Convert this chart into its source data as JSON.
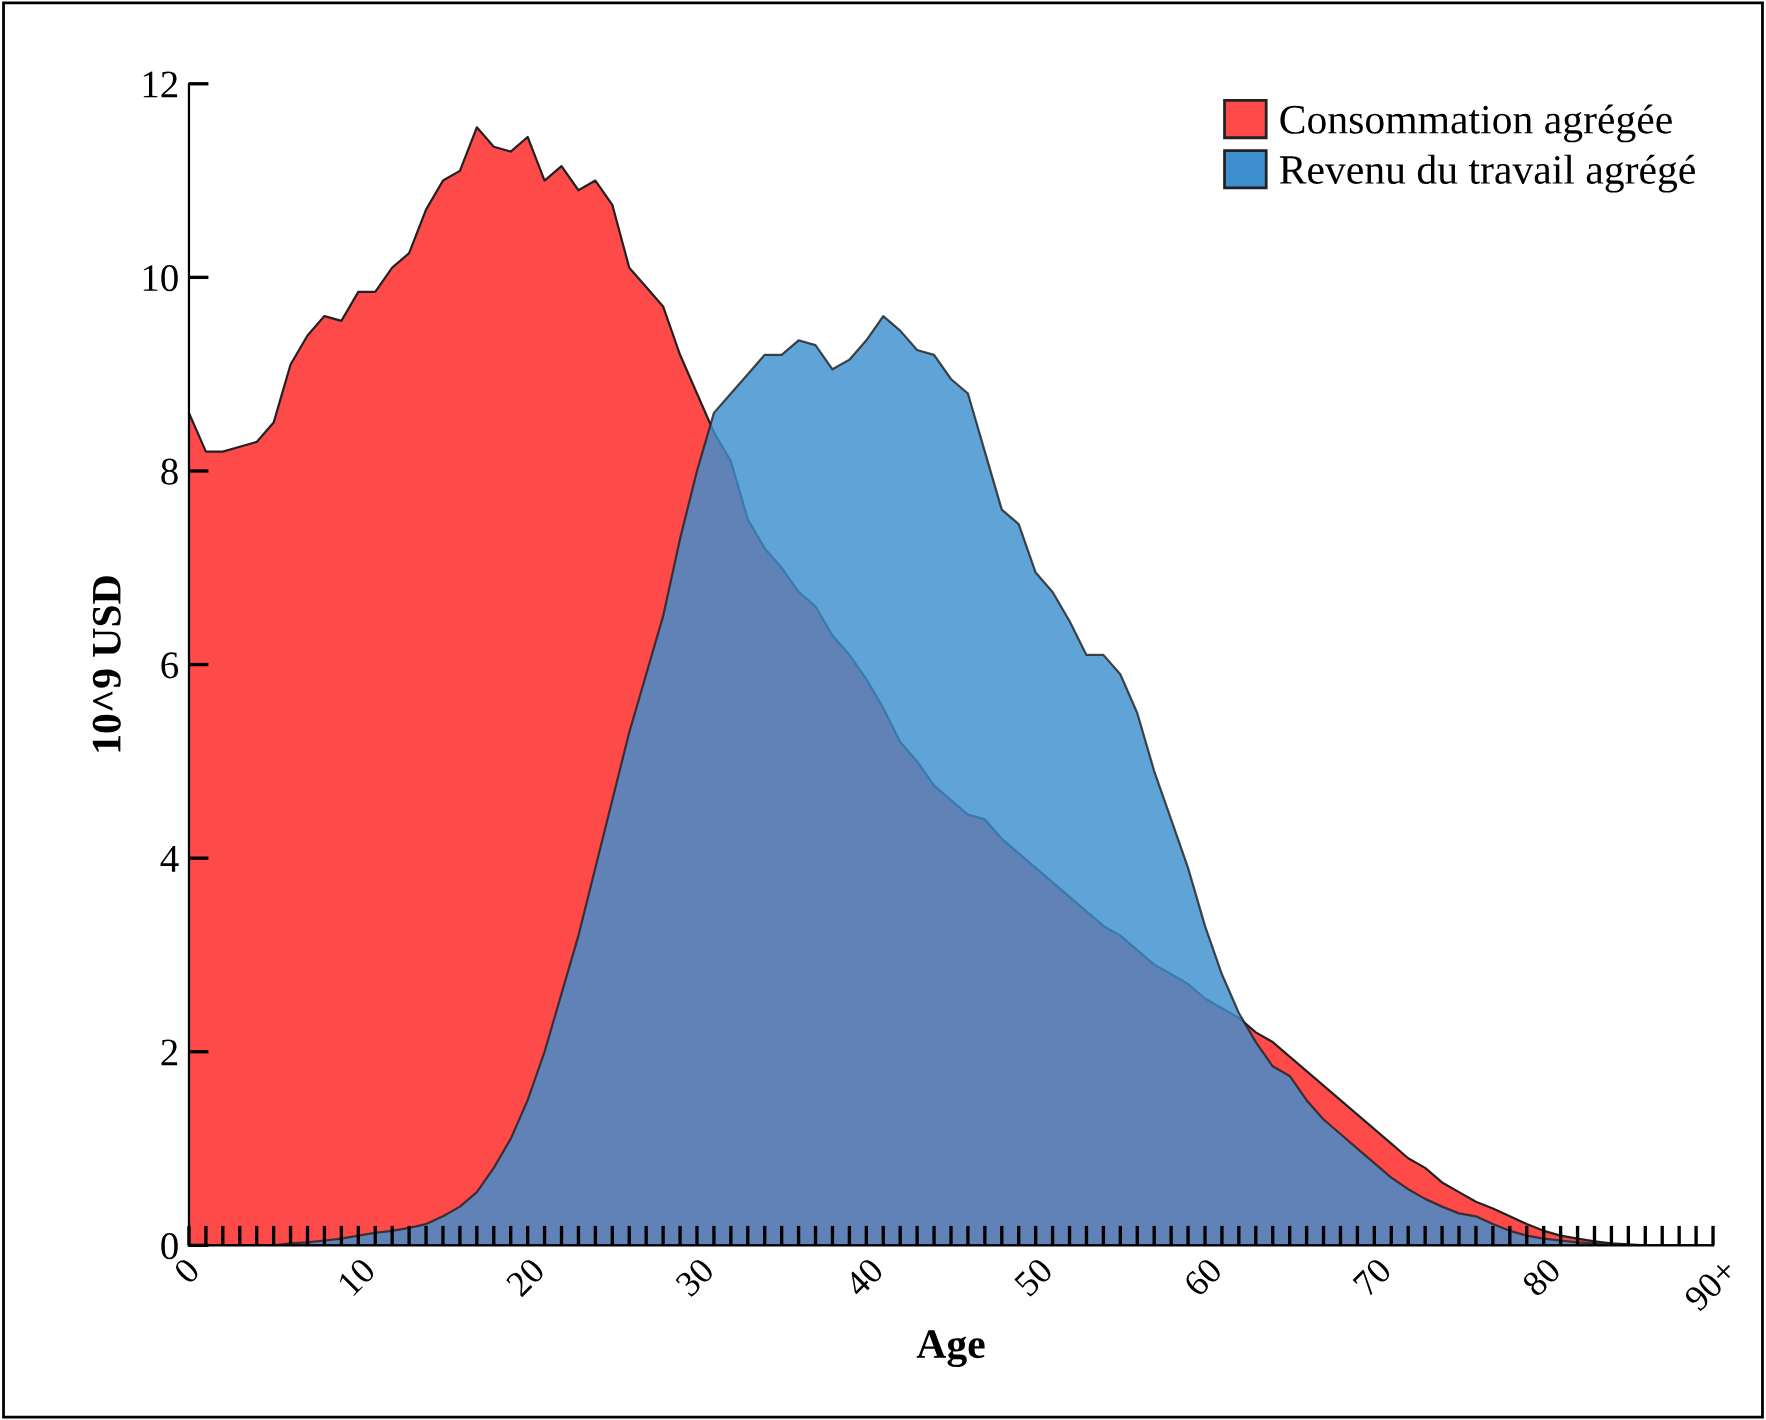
{
  "chart_data": {
    "type": "area",
    "xlabel": "Age",
    "ylabel": "10^9 USD",
    "legend": "top right",
    "grid": false,
    "x": [
      0,
      1,
      2,
      3,
      4,
      5,
      6,
      7,
      8,
      9,
      10,
      11,
      12,
      13,
      14,
      15,
      16,
      17,
      18,
      19,
      20,
      21,
      22,
      23,
      24,
      25,
      26,
      27,
      28,
      29,
      30,
      31,
      32,
      33,
      34,
      35,
      36,
      37,
      38,
      39,
      40,
      41,
      42,
      43,
      44,
      45,
      46,
      47,
      48,
      49,
      50,
      51,
      52,
      53,
      54,
      55,
      56,
      57,
      58,
      59,
      60,
      61,
      62,
      63,
      64,
      65,
      66,
      67,
      68,
      69,
      70,
      71,
      72,
      73,
      74,
      75,
      76,
      77,
      78,
      79,
      80,
      81,
      82,
      83,
      84,
      85,
      86,
      87,
      88,
      89,
      90
    ],
    "series": [
      {
        "name": "Consommation agrégée",
        "color": "#ff4a4a",
        "values": [
          8.6,
          8.2,
          8.2,
          8.25,
          8.3,
          8.5,
          9.1,
          9.4,
          9.6,
          9.55,
          9.85,
          9.85,
          10.1,
          10.25,
          10.7,
          11.0,
          11.1,
          11.55,
          11.35,
          11.3,
          11.45,
          11.0,
          11.15,
          10.9,
          11.0,
          10.75,
          10.1,
          9.9,
          9.7,
          9.2,
          8.8,
          8.4,
          8.1,
          7.5,
          7.2,
          7.0,
          6.75,
          6.6,
          6.3,
          6.1,
          5.85,
          5.55,
          5.2,
          5.0,
          4.75,
          4.6,
          4.45,
          4.4,
          4.2,
          4.05,
          3.9,
          3.75,
          3.6,
          3.45,
          3.3,
          3.2,
          3.05,
          2.9,
          2.8,
          2.7,
          2.55,
          2.45,
          2.35,
          2.2,
          2.1,
          1.95,
          1.8,
          1.65,
          1.5,
          1.35,
          1.2,
          1.05,
          0.9,
          0.8,
          0.65,
          0.55,
          0.45,
          0.38,
          0.3,
          0.22,
          0.15,
          0.1,
          0.07,
          0.04,
          0.02,
          0.01,
          0,
          0,
          0,
          0,
          0
        ]
      },
      {
        "name": "Revenu du travail agrégé",
        "color": "#3d8fce",
        "values": [
          0,
          0,
          0,
          0,
          0,
          0,
          0.02,
          0.03,
          0.05,
          0.07,
          0.1,
          0.13,
          0.15,
          0.18,
          0.22,
          0.3,
          0.4,
          0.55,
          0.8,
          1.1,
          1.5,
          2.0,
          2.6,
          3.2,
          3.9,
          4.6,
          5.3,
          5.9,
          6.5,
          7.3,
          8.0,
          8.6,
          8.8,
          9.0,
          9.2,
          9.2,
          9.35,
          9.3,
          9.05,
          9.15,
          9.35,
          9.6,
          9.45,
          9.25,
          9.2,
          8.95,
          8.8,
          8.2,
          7.6,
          7.45,
          6.95,
          6.75,
          6.45,
          6.1,
          6.1,
          5.9,
          5.5,
          4.9,
          4.4,
          3.9,
          3.3,
          2.8,
          2.4,
          2.1,
          1.85,
          1.75,
          1.5,
          1.3,
          1.15,
          1.0,
          0.85,
          0.7,
          0.58,
          0.48,
          0.4,
          0.33,
          0.3,
          0.22,
          0.15,
          0.1,
          0.07,
          0.05,
          0.03,
          0.02,
          0.01,
          0,
          0,
          0,
          0,
          0,
          0
        ]
      }
    ],
    "xlim": [
      0,
      90
    ],
    "xticks": [
      0,
      {
        "value": 1,
        "label": null
      },
      {
        "value": 2,
        "label": null
      },
      {
        "value": 3,
        "label": null
      },
      {
        "value": 4,
        "label": null
      },
      {
        "value": 5,
        "label": null
      },
      {
        "value": 6,
        "label": null
      },
      {
        "value": 7,
        "label": null
      },
      {
        "value": 8,
        "label": null
      },
      {
        "value": 9,
        "label": null
      },
      10,
      {
        "value": 11,
        "label": null
      },
      {
        "value": 12,
        "label": null
      },
      {
        "value": 13,
        "label": null
      },
      {
        "value": 14,
        "label": null
      },
      {
        "value": 15,
        "label": null
      },
      {
        "value": 16,
        "label": null
      },
      {
        "value": 17,
        "label": null
      },
      {
        "value": 18,
        "label": null
      },
      {
        "value": 19,
        "label": null
      },
      20,
      {
        "value": 21,
        "label": null
      },
      {
        "value": 22,
        "label": null
      },
      {
        "value": 23,
        "label": null
      },
      {
        "value": 24,
        "label": null
      },
      {
        "value": 25,
        "label": null
      },
      {
        "value": 26,
        "label": null
      },
      {
        "value": 27,
        "label": null
      },
      {
        "value": 28,
        "label": null
      },
      {
        "value": 29,
        "label": null
      },
      30,
      {
        "value": 31,
        "label": null
      },
      {
        "value": 32,
        "label": null
      },
      {
        "value": 33,
        "label": null
      },
      {
        "value": 34,
        "label": null
      },
      {
        "value": 35,
        "label": null
      },
      {
        "value": 36,
        "label": null
      },
      {
        "value": 37,
        "label": null
      },
      {
        "value": 38,
        "label": null
      },
      {
        "value": 39,
        "label": null
      },
      40,
      {
        "value": 41,
        "label": null
      },
      {
        "value": 42,
        "label": null
      },
      {
        "value": 43,
        "label": null
      },
      {
        "value": 44,
        "label": null
      },
      {
        "value": 45,
        "label": null
      },
      {
        "value": 46,
        "label": null
      },
      {
        "value": 47,
        "label": null
      },
      {
        "value": 48,
        "label": null
      },
      {
        "value": 49,
        "label": null
      },
      50,
      {
        "value": 51,
        "label": null
      },
      {
        "value": 52,
        "label": null
      },
      {
        "value": 53,
        "label": null
      },
      {
        "value": 54,
        "label": null
      },
      {
        "value": 55,
        "label": null
      },
      {
        "value": 56,
        "label": null
      },
      {
        "value": 57,
        "label": null
      },
      {
        "value": 58,
        "label": null
      },
      {
        "value": 59,
        "label": null
      },
      60,
      {
        "value": 61,
        "label": null
      },
      {
        "value": 62,
        "label": null
      },
      {
        "value": 63,
        "label": null
      },
      {
        "value": 64,
        "label": null
      },
      {
        "value": 65,
        "label": null
      },
      {
        "value": 66,
        "label": null
      },
      {
        "value": 67,
        "label": null
      },
      {
        "value": 68,
        "label": null
      },
      {
        "value": 69,
        "label": null
      },
      70,
      {
        "value": 71,
        "label": null
      },
      {
        "value": 72,
        "label": null
      },
      {
        "value": 73,
        "label": null
      },
      {
        "value": 74,
        "label": null
      },
      {
        "value": 75,
        "label": null
      },
      {
        "value": 76,
        "label": null
      },
      {
        "value": 77,
        "label": null
      },
      {
        "value": 78,
        "label": null
      },
      {
        "value": 79,
        "label": null
      },
      80,
      {
        "value": 81,
        "label": null
      },
      {
        "value": 82,
        "label": null
      },
      {
        "value": 83,
        "label": null
      },
      {
        "value": 84,
        "label": null
      },
      {
        "value": 85,
        "label": null
      },
      {
        "value": 86,
        "label": null
      },
      {
        "value": 87,
        "label": null
      },
      {
        "value": 88,
        "label": null
      },
      {
        "value": 89,
        "label": null
      },
      {
        "value": 90,
        "label": "90+"
      }
    ],
    "ylim": [
      0,
      12
    ],
    "yticks": [
      0,
      2,
      4,
      6,
      8,
      10,
      12
    ]
  }
}
